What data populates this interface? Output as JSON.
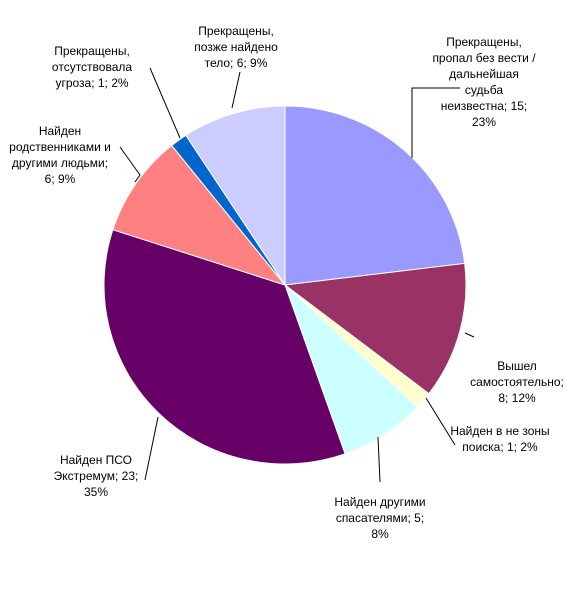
{
  "chart_data": {
    "type": "pie",
    "title": "",
    "slices": [
      {
        "label_lines": [
          "Прекращены,",
          "пропал без вести /",
          "дальнейшая",
          "судьба",
          "неизвестна; 15;",
          "23%"
        ],
        "value": 15,
        "percent": 23,
        "color": "#9999ff"
      },
      {
        "label_lines": [
          "Вышел",
          "самостоятельно;",
          "8; 12%"
        ],
        "value": 8,
        "percent": 12,
        "color": "#993366"
      },
      {
        "label_lines": [
          "Найден в не зоны",
          "поиска; 1; 2%"
        ],
        "value": 1,
        "percent": 2,
        "color": "#ffffcc"
      },
      {
        "label_lines": [
          "Найден другими",
          "спасателями; 5;",
          "8%"
        ],
        "value": 5,
        "percent": 8,
        "color": "#ccffff"
      },
      {
        "label_lines": [
          "Найден ПСО",
          "Экстремум; 23;",
          "35%"
        ],
        "value": 23,
        "percent": 35,
        "color": "#660066"
      },
      {
        "label_lines": [
          "Найден",
          "родственниками и",
          "другими людьми;",
          "6; 9%"
        ],
        "value": 6,
        "percent": 9,
        "color": "#ff8080"
      },
      {
        "label_lines": [
          "Прекращены,",
          "отсутствовала",
          "угроза; 1; 2%"
        ],
        "value": 1,
        "percent": 2,
        "color": "#0066cc"
      },
      {
        "label_lines": [
          "Прекращены,",
          "позже найдено",
          "тело; 6; 9%"
        ],
        "value": 6,
        "percent": 9,
        "color": "#ccccff"
      }
    ]
  }
}
